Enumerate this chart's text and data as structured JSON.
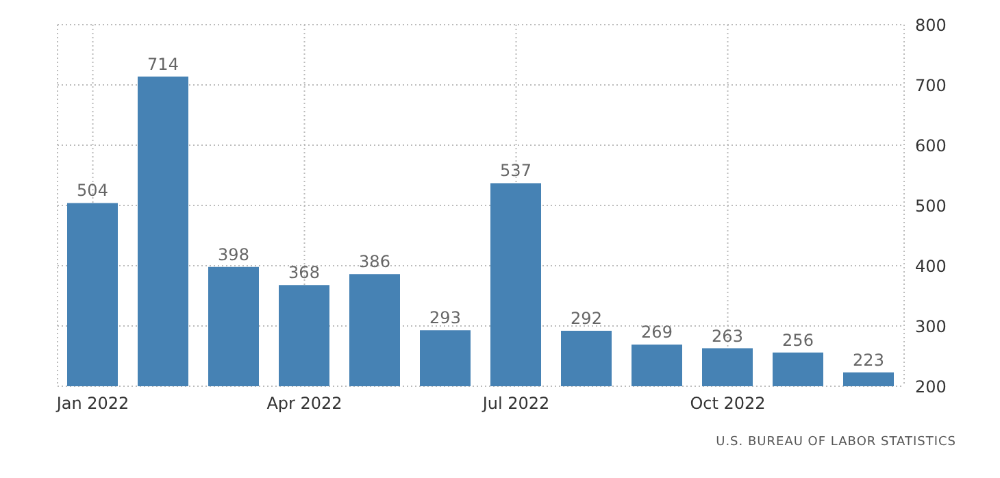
{
  "chart_data": {
    "type": "bar",
    "categories": [
      "Jan 2022",
      null,
      null,
      "Apr 2022",
      null,
      null,
      "Jul 2022",
      null,
      null,
      "Oct 2022",
      null,
      null
    ],
    "values": [
      504,
      714,
      398,
      368,
      386,
      293,
      537,
      292,
      269,
      263,
      256,
      223
    ],
    "color": "#4682b4",
    "ylim": [
      200,
      800
    ],
    "yticks": [
      200,
      300,
      400,
      500,
      600,
      700,
      800
    ],
    "grid": true,
    "data_labels": true,
    "annotations": [
      "U.S. BUREAU OF LABOR STATISTICS"
    ]
  }
}
